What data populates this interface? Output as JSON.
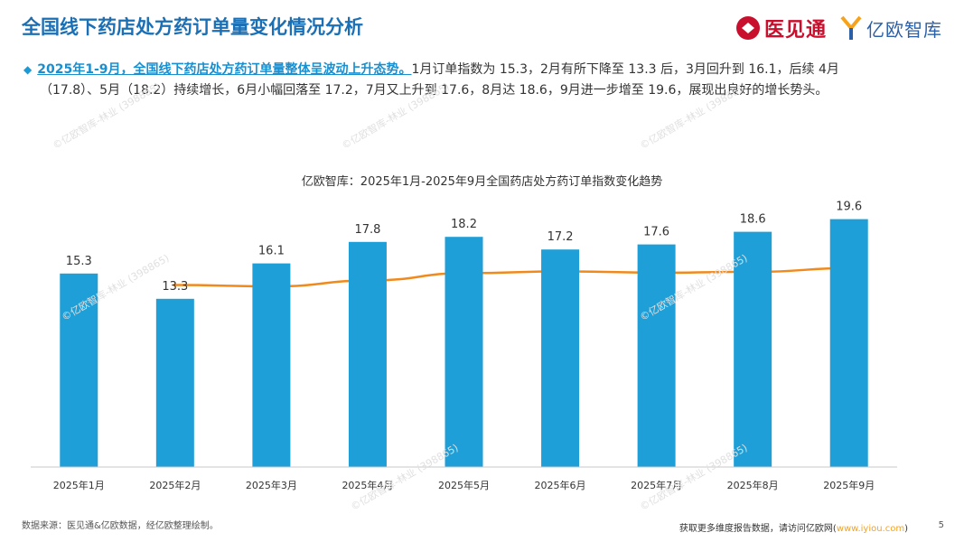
{
  "header": {
    "title": "全国线下药店处方药订单量变化情况分析",
    "logo_a": "医见通",
    "logo_b": "亿欧智库"
  },
  "summary": {
    "highlight": "2025年1-9月，全国线下药店处方药订单量整体呈波动上升态势。",
    "line1_rest": "1月订单指数为 15.3，2月有所下降至 13.3 后，3月回升到 16.1，后续 4月",
    "line2": "（17.8）、5月（18.2）持续增长，6月小幅回落至 17.2，7月又上升到 17.6，8月达 18.6，9月进一步增至 19.6，展现出良好的增长势头。"
  },
  "watermark": "©亿欧智库-林业 (398865)",
  "chart_data": {
    "type": "bar",
    "title": "亿欧智库：2025年1月-2025年9月全国药店处方药订单指数变化趋势",
    "categories": [
      "2025年1月",
      "2025年2月",
      "2025年3月",
      "2025年4月",
      "2025年5月",
      "2025年6月",
      "2025年7月",
      "2025年8月",
      "2025年9月"
    ],
    "values": [
      15.3,
      13.3,
      16.1,
      17.8,
      18.2,
      17.2,
      17.6,
      18.6,
      19.6
    ],
    "trend_line": {
      "name": "趋势线",
      "color": "#f08a1c"
    },
    "bar_color": "#1f9fd8",
    "xlabel": "",
    "ylabel": "",
    "ylim": [
      0,
      20
    ]
  },
  "footer": {
    "source": "数据来源：医见通&亿欧数据，经亿欧整理绘制。",
    "more_text": "获取更多维度报告数据，请访问亿欧网",
    "link_text": "www.iyiou.com",
    "page": "5"
  }
}
